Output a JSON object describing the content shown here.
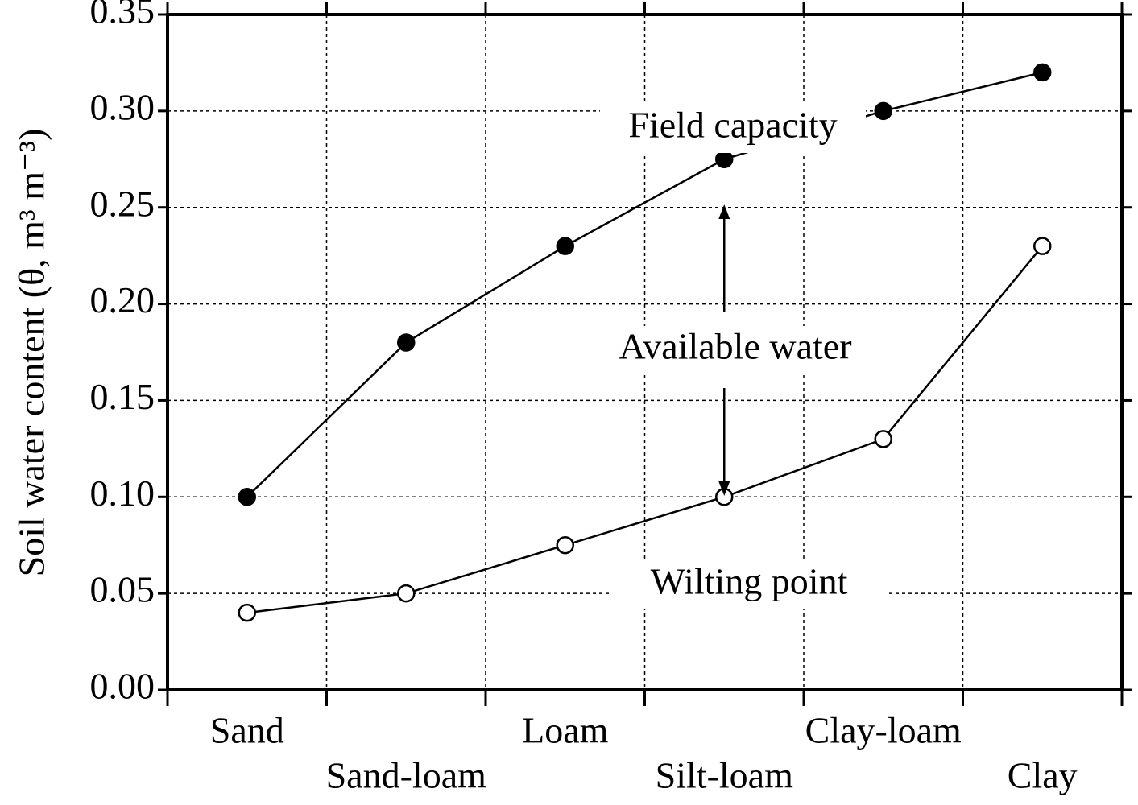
{
  "chart_data": {
    "type": "line",
    "y_label": "Soil water content (θ, m³ m⁻³)",
    "categories": [
      "Sand",
      "Sand-loam",
      "Loam",
      "Silt-loam",
      "Clay-loam",
      "Clay"
    ],
    "series": [
      {
        "name": "Field capacity",
        "color": "#000000",
        "marker_fill": "#000000",
        "values": [
          0.1,
          0.18,
          0.23,
          0.275,
          0.3,
          0.32
        ]
      },
      {
        "name": "Wilting point",
        "color": "#000000",
        "marker_fill": "#ffffff",
        "values": [
          0.04,
          0.05,
          0.075,
          0.1,
          0.13,
          0.23
        ]
      }
    ],
    "annotation": "Available water",
    "ylim": [
      0,
      0.35
    ],
    "yticks": [
      {
        "value": 0,
        "label": "0.00"
      },
      {
        "value": 0.05,
        "label": "0.05"
      },
      {
        "value": 0.1,
        "label": "0.10"
      },
      {
        "value": 0.15,
        "label": "0.15"
      },
      {
        "value": 0.2,
        "label": "0.20"
      },
      {
        "value": 0.25,
        "label": "0.25"
      },
      {
        "value": 0.3,
        "label": "0.30"
      },
      {
        "value": 0.35,
        "label": "0.35"
      }
    ],
    "grid": true
  }
}
